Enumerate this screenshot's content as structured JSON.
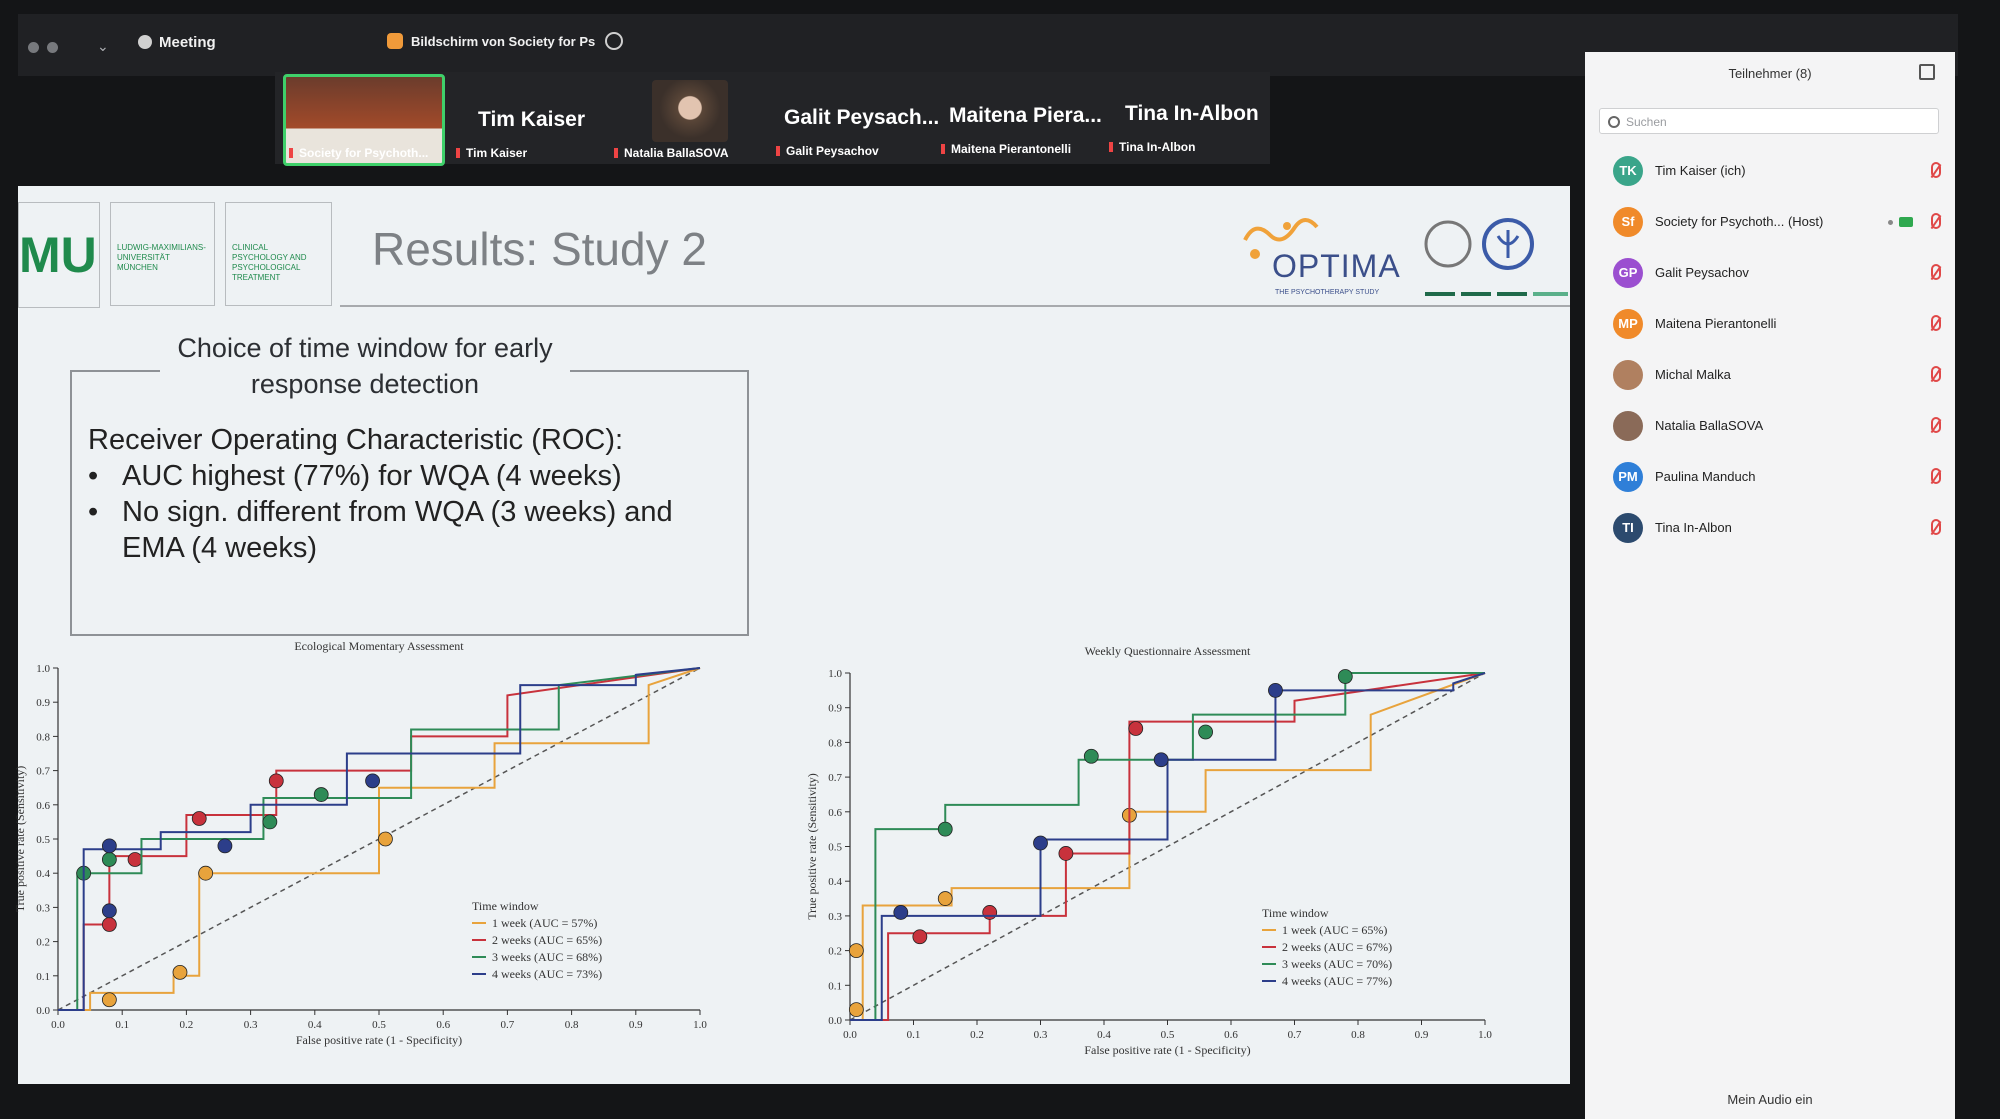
{
  "topbar": {
    "meeting": "Meeting",
    "screen_share": "Bildschirm von Society for Ps"
  },
  "gallery": [
    {
      "name": "",
      "label": "Society for Psychoth..."
    },
    {
      "name": "Tim Kaiser",
      "label": "Tim Kaiser"
    },
    {
      "name": "",
      "label": "Natalia BallaSOVA"
    },
    {
      "name": "Galit Peysach...",
      "label": "Galit Peysachov"
    },
    {
      "name": "Maitena Piera...",
      "label": "Maitena Pierantonelli"
    },
    {
      "name": "Tina In-Albon",
      "label": "Tina In-Albon"
    }
  ],
  "slide": {
    "title": "Results: Study 2",
    "logo_mu": "MU",
    "logo_lmu_text": "LUDWIG-MAXIMILIANS-UNIVERSITÄT MÜNCHEN",
    "logo_clinical_text": "CLINICAL PSYCHOLOGY AND PSYCHOLOGICAL TREATMENT",
    "optima": "OPTIMA",
    "optima_sub": "THE PSYCHOTHERAPY STUDY",
    "box_heading": "Choice of time window for early response detection",
    "roc_heading": "Receiver Operating Characteristic (ROC):",
    "bullets": [
      "AUC highest (77%) for WQA (4 weeks)",
      "No sign. different from WQA (3 weeks) and EMA (4 weeks)"
    ]
  },
  "chart_data": [
    {
      "type": "line",
      "title": "Ecological Momentary Assessment",
      "xlabel": "False positive rate (1 - Specificity)",
      "ylabel": "True positive rate (Sensitivity)",
      "xlim": [
        0,
        1
      ],
      "ylim": [
        0,
        1
      ],
      "xticks": [
        "0.0",
        "0.1",
        "0.2",
        "0.3",
        "0.4",
        "0.5",
        "0.6",
        "0.7",
        "0.8",
        "0.9",
        "1.0"
      ],
      "yticks": [
        "0.0",
        "0.1",
        "0.2",
        "0.3",
        "0.4",
        "0.5",
        "0.6",
        "0.7",
        "0.8",
        "0.9",
        "1.0"
      ],
      "legend_title": "Time window",
      "series": [
        {
          "name": "1 week (AUC = 57%)",
          "color": "#e8a33c",
          "x": [
            0,
            0.05,
            0.05,
            0.18,
            0.18,
            0.22,
            0.22,
            0.5,
            0.5,
            0.68,
            0.68,
            0.92,
            0.92,
            1
          ],
          "y": [
            0,
            0,
            0.05,
            0.05,
            0.1,
            0.1,
            0.4,
            0.4,
            0.65,
            0.65,
            0.78,
            0.78,
            0.95,
            1
          ],
          "markers": [
            [
              0.08,
              0.03
            ],
            [
              0.19,
              0.11
            ],
            [
              0.23,
              0.4
            ],
            [
              0.51,
              0.5
            ]
          ]
        },
        {
          "name": "2 weeks (AUC = 65%)",
          "color": "#c8323c",
          "x": [
            0,
            0.04,
            0.04,
            0.08,
            0.08,
            0.2,
            0.2,
            0.34,
            0.34,
            0.55,
            0.55,
            0.7,
            0.7,
            1
          ],
          "y": [
            0,
            0,
            0.25,
            0.25,
            0.45,
            0.45,
            0.57,
            0.57,
            0.7,
            0.7,
            0.8,
            0.8,
            0.92,
            1
          ],
          "markers": [
            [
              0.08,
              0.25
            ],
            [
              0.12,
              0.44
            ],
            [
              0.22,
              0.56
            ],
            [
              0.34,
              0.67
            ]
          ]
        },
        {
          "name": "3 weeks (AUC = 68%)",
          "color": "#2e8b57",
          "x": [
            0,
            0.03,
            0.03,
            0.13,
            0.13,
            0.32,
            0.32,
            0.55,
            0.55,
            0.78,
            0.78,
            1
          ],
          "y": [
            0,
            0,
            0.4,
            0.4,
            0.5,
            0.5,
            0.62,
            0.62,
            0.82,
            0.82,
            0.95,
            1
          ],
          "markers": [
            [
              0.04,
              0.4
            ],
            [
              0.08,
              0.44
            ],
            [
              0.33,
              0.55
            ],
            [
              0.41,
              0.63
            ]
          ]
        },
        {
          "name": "4 weeks (AUC = 73%)",
          "color": "#2c3e8a",
          "x": [
            0,
            0.04,
            0.04,
            0.16,
            0.16,
            0.3,
            0.3,
            0.45,
            0.45,
            0.72,
            0.72,
            0.9,
            0.9,
            1
          ],
          "y": [
            0,
            0,
            0.47,
            0.47,
            0.52,
            0.52,
            0.6,
            0.6,
            0.75,
            0.75,
            0.95,
            0.95,
            0.98,
            1
          ],
          "markers": [
            [
              0.08,
              0.29
            ],
            [
              0.08,
              0.48
            ],
            [
              0.26,
              0.48
            ],
            [
              0.49,
              0.67
            ]
          ]
        }
      ]
    },
    {
      "type": "line",
      "title": "Weekly Questionnaire Assessment",
      "xlabel": "False positive rate (1 - Specificity)",
      "ylabel": "True positive rate (Sensitivity)",
      "xlim": [
        0,
        1
      ],
      "ylim": [
        0,
        1
      ],
      "xticks": [
        "0.0",
        "0.1",
        "0.2",
        "0.3",
        "0.4",
        "0.5",
        "0.6",
        "0.7",
        "0.8",
        "0.9",
        "1.0"
      ],
      "yticks": [
        "0.0",
        "0.1",
        "0.2",
        "0.3",
        "0.4",
        "0.5",
        "0.6",
        "0.7",
        "0.8",
        "0.9",
        "1.0"
      ],
      "legend_title": "Time window",
      "series": [
        {
          "name": "1 week (AUC = 65%)",
          "color": "#e8a33c",
          "x": [
            0,
            0.02,
            0.02,
            0.16,
            0.16,
            0.44,
            0.44,
            0.56,
            0.56,
            0.82,
            0.82,
            1
          ],
          "y": [
            0,
            0,
            0.33,
            0.33,
            0.38,
            0.38,
            0.6,
            0.6,
            0.72,
            0.72,
            0.88,
            1
          ],
          "markers": [
            [
              0.01,
              0.03
            ],
            [
              0.01,
              0.2
            ],
            [
              0.15,
              0.35
            ],
            [
              0.44,
              0.59
            ]
          ]
        },
        {
          "name": "2 weeks (AUC = 67%)",
          "color": "#c8323c",
          "x": [
            0,
            0.06,
            0.06,
            0.22,
            0.22,
            0.34,
            0.34,
            0.44,
            0.44,
            0.7,
            0.7,
            1
          ],
          "y": [
            0,
            0,
            0.25,
            0.25,
            0.3,
            0.3,
            0.48,
            0.48,
            0.86,
            0.86,
            0.92,
            1
          ],
          "markers": [
            [
              0.11,
              0.24
            ],
            [
              0.22,
              0.31
            ],
            [
              0.34,
              0.48
            ],
            [
              0.45,
              0.84
            ]
          ]
        },
        {
          "name": "3 weeks (AUC = 70%)",
          "color": "#2e8b57",
          "x": [
            0,
            0.04,
            0.04,
            0.15,
            0.15,
            0.36,
            0.36,
            0.54,
            0.54,
            0.78,
            0.78,
            1
          ],
          "y": [
            0,
            0,
            0.55,
            0.55,
            0.62,
            0.62,
            0.75,
            0.75,
            0.88,
            0.88,
            1,
            1
          ],
          "markers": [
            [
              0.15,
              0.55
            ],
            [
              0.38,
              0.76
            ],
            [
              0.56,
              0.83
            ],
            [
              0.78,
              0.99
            ]
          ]
        },
        {
          "name": "4 weeks (AUC = 77%)",
          "color": "#2c3e8a",
          "x": [
            0,
            0.05,
            0.05,
            0.3,
            0.3,
            0.5,
            0.5,
            0.67,
            0.67,
            0.95,
            0.95,
            1
          ],
          "y": [
            0,
            0,
            0.3,
            0.3,
            0.52,
            0.52,
            0.75,
            0.75,
            0.95,
            0.95,
            0.97,
            1
          ],
          "markers": [
            [
              0.08,
              0.31
            ],
            [
              0.3,
              0.51
            ],
            [
              0.49,
              0.75
            ],
            [
              0.67,
              0.95
            ]
          ]
        }
      ]
    }
  ],
  "sidebar": {
    "header": "Teilnehmer (8)",
    "search_placeholder": "Suchen",
    "footer": "Mein Audio ein",
    "participants": [
      {
        "initials": "TK",
        "name": "Tim Kaiser (ich)",
        "color": "#3aa58a"
      },
      {
        "initials": "Sf",
        "name": "Society for Psychoth...  (Host)",
        "color": "#f08a2a"
      },
      {
        "initials": "GP",
        "name": "Galit Peysachov",
        "color": "#9b4fd0"
      },
      {
        "initials": "MP",
        "name": "Maitena Pierantonelli",
        "color": "#f08a2a"
      },
      {
        "initials": "",
        "name": "Michal Malka",
        "color": "#b08060"
      },
      {
        "initials": "",
        "name": "Natalia BallaSOVA",
        "color": "#8a6a58"
      },
      {
        "initials": "PM",
        "name": "Paulina Manduch",
        "color": "#2f7fd8"
      },
      {
        "initials": "TI",
        "name": "Tina In-Albon",
        "color": "#2c4a6e"
      }
    ]
  }
}
